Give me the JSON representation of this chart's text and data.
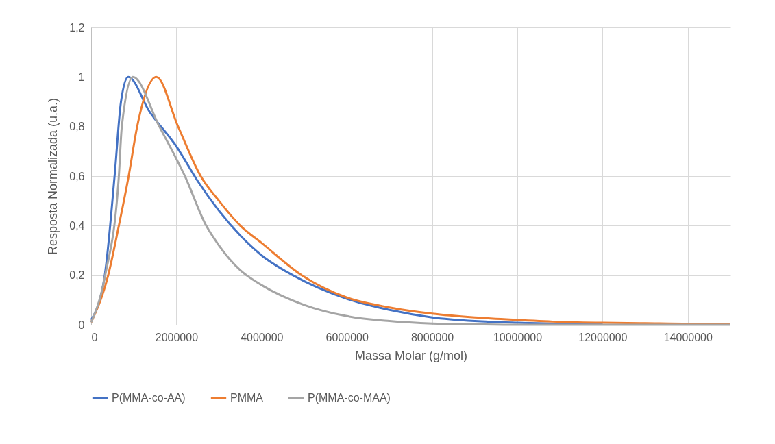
{
  "chart_data": {
    "type": "line",
    "xlabel": "Massa Molar (g/mol)",
    "ylabel": "Resposta Normalizada (u.a.)",
    "xlim": [
      0,
      15000000
    ],
    "ylim": [
      0,
      1.2
    ],
    "xticks": [
      0,
      2000000,
      4000000,
      6000000,
      8000000,
      10000000,
      12000000,
      14000000
    ],
    "yticks": [
      0,
      {
        "value": 0.2,
        "label": "0,2"
      },
      {
        "value": 0.4,
        "label": "0,4"
      },
      {
        "value": 0.6,
        "label": "0,6"
      },
      {
        "value": 0.8,
        "label": "0,8"
      },
      1,
      {
        "value": 1.2,
        "label": "1,2"
      }
    ],
    "grid": true,
    "legend": "bottom",
    "marker": "none",
    "line_style": "solid",
    "series": [
      {
        "name": "P(MMA-co-AA)",
        "color": "#4472c4",
        "x": [
          0,
          320000,
          550000,
          700000,
          870000,
          1370000,
          2000000,
          2500000,
          3000000,
          3500000,
          4000000,
          4730000,
          6000000,
          7000000,
          8000000,
          9000000,
          10000000,
          11000000,
          12000000
        ],
        "values": [
          0.02,
          0.2,
          0.6,
          0.9,
          1,
          0.86,
          0.72,
          0.58,
          0.46,
          0.36,
          0.28,
          0.2,
          0.105,
          0.06,
          0.03,
          0.015,
          0.008,
          0.004,
          0.002
        ]
      },
      {
        "name": "PMMA",
        "color": "#ed7d31",
        "x": [
          0,
          400000,
          650000,
          880000,
          1080000,
          1530000,
          2040000,
          2570000,
          3000000,
          3500000,
          4000000,
          4940000,
          6000000,
          7000000,
          8000000,
          9000000,
          10000000,
          11000000,
          12000000,
          13000000,
          14000000,
          15000000
        ],
        "values": [
          0.01,
          0.2,
          0.4,
          0.6,
          0.8,
          1,
          0.8,
          0.6,
          0.5,
          0.4,
          0.33,
          0.2,
          0.11,
          0.07,
          0.045,
          0.03,
          0.02,
          0.012,
          0.008,
          0.006,
          0.004,
          0.004
        ]
      },
      {
        "name": "P(MMA-co-MAA)",
        "color": "#a5a5a5",
        "x": [
          0,
          330000,
          650000,
          720000,
          980000,
          1600000,
          2200000,
          2700000,
          3000000,
          3500000,
          4000000,
          5000000,
          6000000,
          7000000,
          8000000,
          9000000,
          10000000,
          15000000
        ],
        "values": [
          0.01,
          0.2,
          0.6,
          0.8,
          1,
          0.8,
          0.6,
          0.4,
          0.32,
          0.22,
          0.16,
          0.08,
          0.035,
          0.015,
          0.005,
          0.002,
          0,
          0
        ]
      }
    ]
  }
}
